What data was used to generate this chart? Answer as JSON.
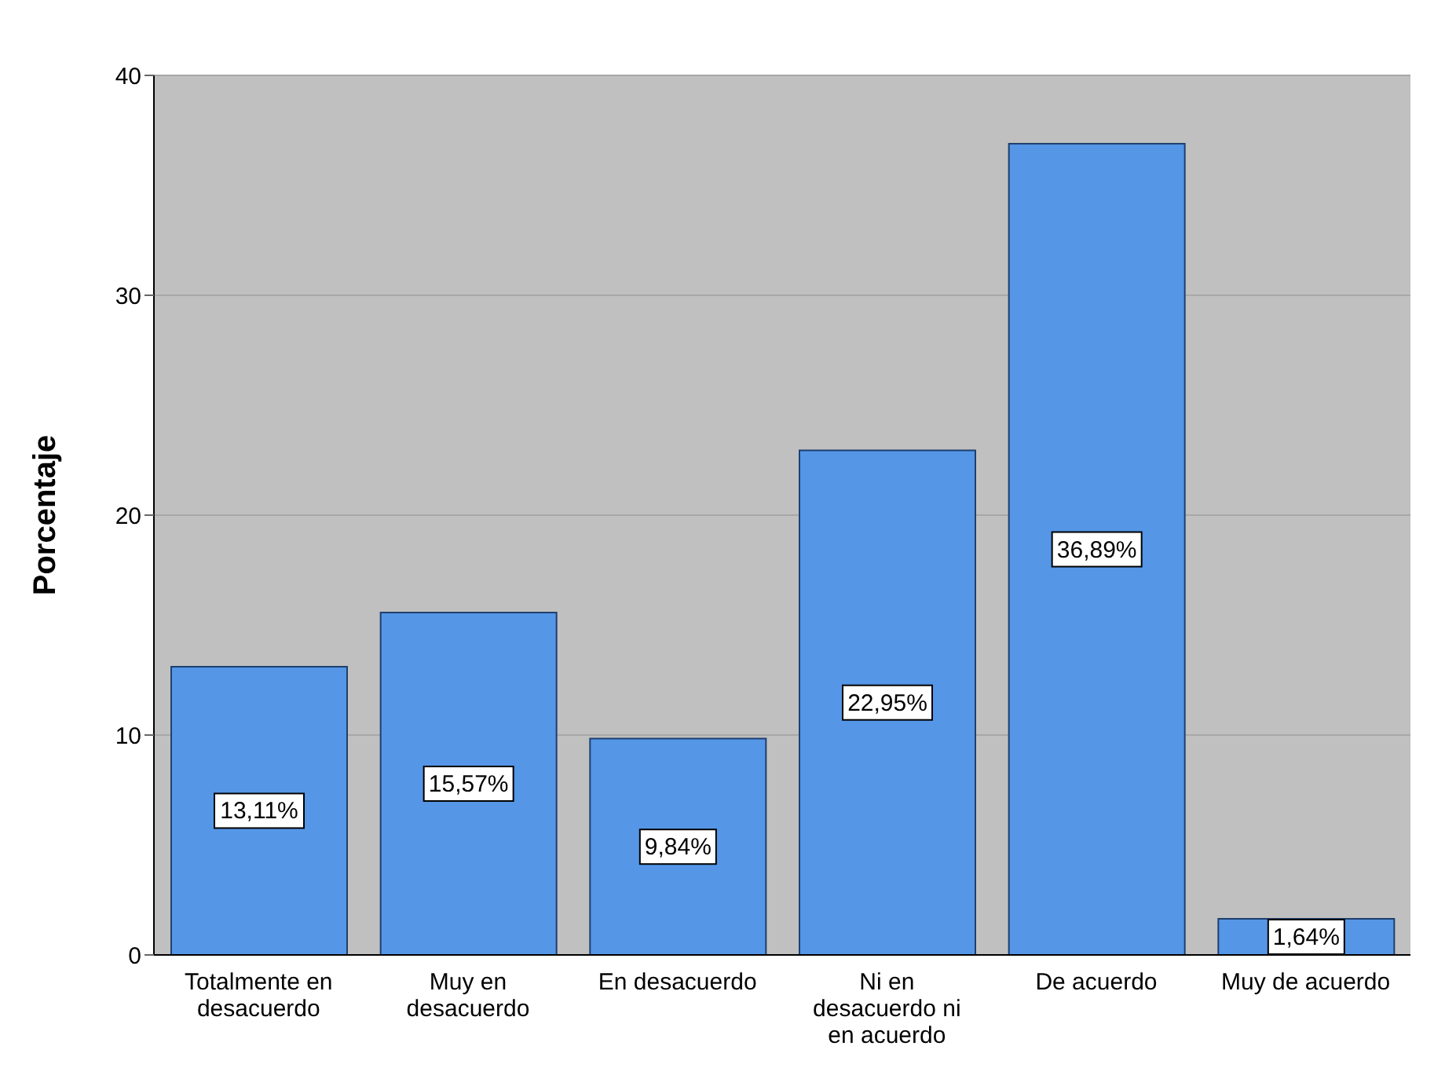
{
  "chart_data": {
    "type": "bar",
    "ylabel": "Porcentaje",
    "categories": [
      "Totalmente en desacuerdo",
      "Muy en desacuerdo",
      "En desacuerdo",
      "Ni en desacuerdo ni en acuerdo",
      "De acuerdo",
      "Muy de acuerdo"
    ],
    "values": [
      13.11,
      15.57,
      9.84,
      22.95,
      36.89,
      1.64
    ],
    "value_labels": [
      "13,11%",
      "15,57%",
      "9,84%",
      "22,95%",
      "36,89%",
      "1,64%"
    ],
    "color": "#5596e6",
    "ylim": [
      0,
      40
    ],
    "yticks": [
      0,
      10,
      20,
      30,
      40
    ],
    "grid": "y"
  }
}
